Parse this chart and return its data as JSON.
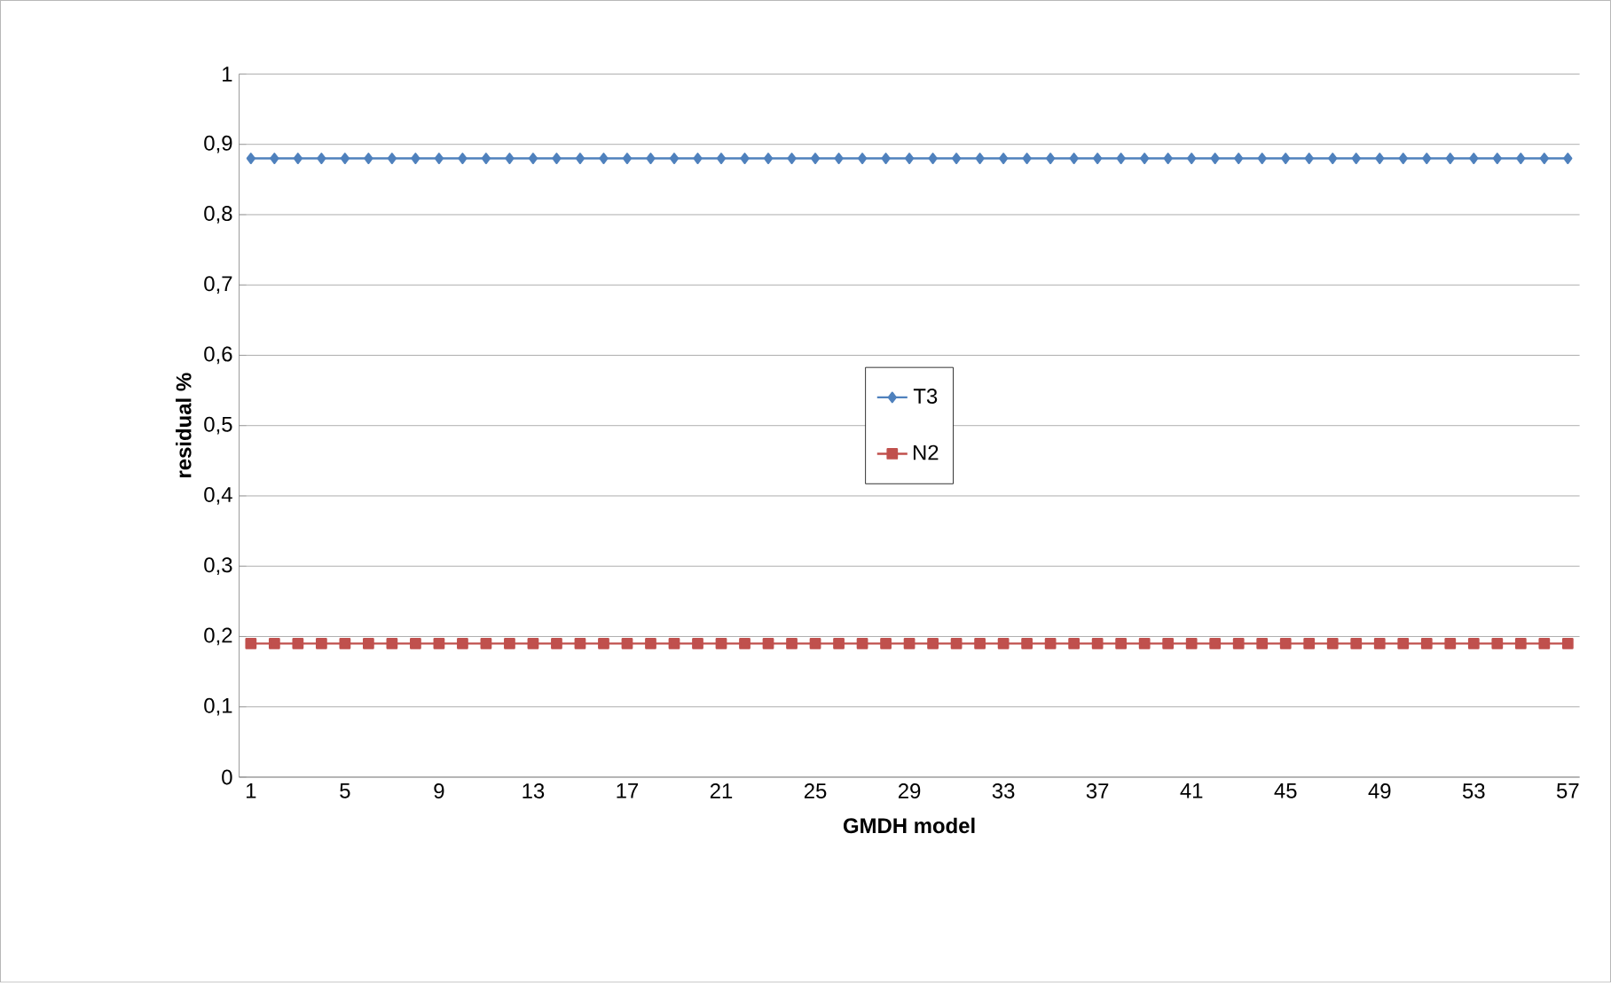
{
  "chart_data": {
    "type": "line",
    "xlabel": "GMDH model",
    "ylabel": "residual %",
    "categories": [
      "1",
      null,
      null,
      null,
      "5",
      null,
      null,
      null,
      "9",
      null,
      null,
      null,
      "13",
      null,
      null,
      null,
      "17",
      null,
      null,
      null,
      "21",
      null,
      null,
      null,
      "25",
      null,
      null,
      null,
      "29",
      null,
      null,
      null,
      "33",
      null,
      null,
      null,
      "37",
      null,
      null,
      null,
      "41",
      null,
      null,
      null,
      "45",
      null,
      null,
      null,
      "49",
      null,
      null,
      null,
      "53",
      null,
      null,
      null,
      "57"
    ],
    "series": [
      {
        "name": "T3",
        "color": "#4f81bd",
        "marker": "diamond",
        "values": [
          0.88,
          0.88,
          0.88,
          0.88,
          0.88,
          0.88,
          0.88,
          0.88,
          0.88,
          0.88,
          0.88,
          0.88,
          0.88,
          0.88,
          0.88,
          0.88,
          0.88,
          0.88,
          0.88,
          0.88,
          0.88,
          0.88,
          0.88,
          0.88,
          0.88,
          0.88,
          0.88,
          0.88,
          0.88,
          0.88,
          0.88,
          0.88,
          0.88,
          0.88,
          0.88,
          0.88,
          0.88,
          0.88,
          0.88,
          0.88,
          0.88,
          0.88,
          0.88,
          0.88,
          0.88,
          0.88,
          0.88,
          0.88,
          0.88,
          0.88,
          0.88,
          0.88,
          0.88,
          0.88,
          0.88,
          0.88,
          0.88
        ]
      },
      {
        "name": "N2",
        "color": "#c0504d",
        "marker": "square",
        "values": [
          0.19,
          0.19,
          0.19,
          0.19,
          0.19,
          0.19,
          0.19,
          0.19,
          0.19,
          0.19,
          0.19,
          0.19,
          0.19,
          0.19,
          0.19,
          0.19,
          0.19,
          0.19,
          0.19,
          0.19,
          0.19,
          0.19,
          0.19,
          0.19,
          0.19,
          0.19,
          0.19,
          0.19,
          0.19,
          0.19,
          0.19,
          0.19,
          0.19,
          0.19,
          0.19,
          0.19,
          0.19,
          0.19,
          0.19,
          0.19,
          0.19,
          0.19,
          0.19,
          0.19,
          0.19,
          0.19,
          0.19,
          0.19,
          0.19,
          0.19,
          0.19,
          0.19,
          0.19,
          0.19,
          0.19,
          0.19,
          0.19
        ]
      }
    ],
    "ylim": [
      0,
      1
    ],
    "yticks": [
      {
        "value": 0,
        "label": "0"
      },
      {
        "value": 0.1,
        "label": "0,1"
      },
      {
        "value": 0.2,
        "label": "0,2"
      },
      {
        "value": 0.3,
        "label": "0,3"
      },
      {
        "value": 0.4,
        "label": "0,4"
      },
      {
        "value": 0.5,
        "label": "0,5"
      },
      {
        "value": 0.6,
        "label": "0,6"
      },
      {
        "value": 0.7,
        "label": "0,7"
      },
      {
        "value": 0.8,
        "label": "0,8"
      },
      {
        "value": 0.9,
        "label": "0,9"
      },
      {
        "value": 1,
        "label": "1"
      }
    ],
    "grid": "y",
    "legend": "center",
    "line_style": "solid"
  }
}
